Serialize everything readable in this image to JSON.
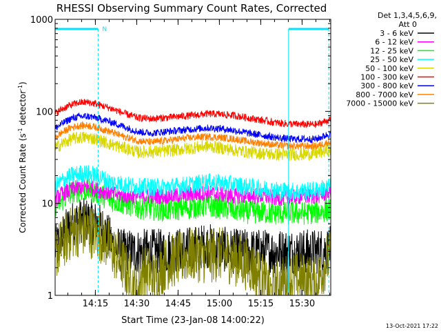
{
  "chart_data": {
    "type": "line",
    "title": "RHESSI Observing Summary Count Rates, Corrected",
    "xlabel": "Start Time (23-Jan-08 14:00:22)",
    "ylabel_main": "Corrected Count Rate (s",
    "ylabel_sup1": "-1",
    "ylabel_mid": " detector",
    "ylabel_sup2": "-1",
    "ylabel_end": ")",
    "yscale": "log",
    "ylim": [
      1,
      1000
    ],
    "xlim_minutes": [
      0,
      100
    ],
    "x_ticks": [
      {
        "t": 14.6,
        "label": "14:15"
      },
      {
        "t": 29.6,
        "label": "14:30"
      },
      {
        "t": 44.6,
        "label": "14:45"
      },
      {
        "t": 59.6,
        "label": "15:00"
      },
      {
        "t": 74.6,
        "label": "15:15"
      },
      {
        "t": 89.6,
        "label": "15:30"
      }
    ],
    "y_ticks": [
      {
        "v": 1,
        "label": "1"
      },
      {
        "v": 10,
        "label": "10"
      },
      {
        "v": 100,
        "label": "100"
      },
      {
        "v": 1000,
        "label": "1000"
      }
    ],
    "legend_header": [
      "Det 1,3,4,5,6,9,",
      "Att 0"
    ],
    "legend_position": "right",
    "series": [
      {
        "name": "3 - 6 keV",
        "color": "#000000",
        "x": [
          0,
          3,
          6,
          9,
          12,
          15,
          18,
          21,
          24,
          30,
          40,
          50,
          55,
          60,
          65,
          70,
          75,
          80,
          85,
          90,
          95,
          99
        ],
        "y": [
          3.2,
          4.5,
          6.0,
          6.5,
          6.5,
          6.0,
          5.0,
          3.5,
          3.0,
          3.0,
          3.0,
          3.2,
          3.5,
          3.2,
          3.0,
          3.0,
          3.0,
          3.0,
          3.0,
          3.0,
          3.0,
          3.2
        ]
      },
      {
        "name": "6 - 12 keV",
        "color": "#ff00ff",
        "x": [
          0,
          3,
          6,
          9,
          12,
          15,
          20,
          25,
          30,
          40,
          50,
          55,
          60,
          65,
          70,
          75,
          80,
          85,
          90,
          95,
          99
        ],
        "y": [
          11,
          13,
          14,
          15,
          15,
          14,
          13,
          12,
          12,
          12,
          12.5,
          13,
          12.5,
          12,
          12,
          12,
          11.5,
          11.5,
          12,
          12,
          13
        ]
      },
      {
        "name": "12 - 25 keV",
        "color": "#00ff00",
        "x": [
          0,
          3,
          6,
          9,
          12,
          15,
          20,
          25,
          30,
          40,
          50,
          55,
          60,
          65,
          70,
          75,
          80,
          85,
          90,
          95,
          99
        ],
        "y": [
          9.5,
          11,
          13,
          14,
          14,
          13,
          11,
          10,
          9,
          8.5,
          9,
          9.5,
          9,
          8.5,
          8,
          8,
          7.8,
          7.8,
          7.8,
          8,
          8.5
        ]
      },
      {
        "name": "25 - 50 keV",
        "color": "#00ffff",
        "x": [
          0,
          3,
          6,
          9,
          12,
          15,
          20,
          25,
          30,
          40,
          50,
          55,
          60,
          65,
          70,
          75,
          80,
          85,
          90,
          95,
          99
        ],
        "y": [
          15,
          18,
          20,
          21,
          21,
          20,
          17,
          16,
          15,
          15,
          16,
          17,
          16.5,
          16,
          15,
          14.5,
          14,
          13.5,
          13.5,
          14,
          15
        ]
      },
      {
        "name": "50 - 100 keV",
        "color": "#d8d800",
        "x": [
          0,
          3,
          6,
          9,
          12,
          15,
          20,
          25,
          30,
          40,
          50,
          55,
          60,
          65,
          70,
          75,
          80,
          85,
          90,
          95,
          99
        ],
        "y": [
          40,
          45,
          50,
          52,
          52,
          50,
          44,
          40,
          36,
          37,
          40,
          42,
          40,
          38,
          36,
          35,
          34,
          34,
          34,
          35,
          38
        ]
      },
      {
        "name": "100 - 300 keV",
        "color": "#ff0000",
        "x": [
          0,
          3,
          6,
          9,
          12,
          15,
          20,
          25,
          30,
          35,
          40,
          45,
          50,
          55,
          60,
          65,
          70,
          75,
          80,
          85,
          90,
          95,
          99
        ],
        "y": [
          95,
          108,
          118,
          125,
          125,
          120,
          108,
          95,
          85,
          83,
          85,
          88,
          90,
          94,
          93,
          90,
          85,
          80,
          75,
          73,
          72,
          72,
          80
        ]
      },
      {
        "name": "300 - 800 keV",
        "color": "#0000ff",
        "x": [
          0,
          3,
          6,
          9,
          12,
          15,
          20,
          25,
          30,
          35,
          40,
          45,
          50,
          55,
          60,
          65,
          70,
          75,
          80,
          85,
          90,
          95,
          99
        ],
        "y": [
          65,
          75,
          84,
          88,
          88,
          85,
          77,
          68,
          60,
          58,
          60,
          62,
          64,
          66,
          65,
          62,
          58,
          55,
          52,
          50,
          50,
          50,
          56
        ]
      },
      {
        "name": "800 - 7000 keV",
        "color": "#ff8000",
        "x": [
          0,
          3,
          6,
          9,
          12,
          15,
          20,
          25,
          30,
          35,
          40,
          45,
          50,
          55,
          60,
          65,
          70,
          75,
          80,
          85,
          90,
          95,
          99
        ],
        "y": [
          52,
          60,
          67,
          70,
          70,
          67,
          60,
          53,
          48,
          46,
          48,
          50,
          52,
          53,
          52,
          50,
          47,
          45,
          43,
          42,
          42,
          42,
          46
        ]
      },
      {
        "name": "7000 - 15000 keV",
        "color": "#808000",
        "x": [
          0,
          3,
          6,
          9,
          12,
          15,
          18,
          21,
          24,
          27,
          30,
          32,
          36,
          40,
          45,
          50,
          55,
          60,
          65,
          70,
          75,
          78,
          80,
          85,
          90,
          95,
          99
        ],
        "y": [
          2.8,
          3.8,
          4.8,
          5.2,
          5.0,
          4.8,
          4.0,
          3.0,
          2.3,
          1.5,
          1.0,
          2.0,
          1.5,
          2.2,
          2.5,
          2.8,
          2.6,
          2.8,
          2.5,
          2.2,
          1.5,
          1.0,
          1.2,
          1.5,
          1.5,
          1.3,
          2.5
        ]
      }
    ],
    "attenuator_marks": [
      {
        "start": 0,
        "end": 15.6,
        "label": "N"
      },
      {
        "start": 84.7,
        "end": 99.3,
        "label": ""
      }
    ]
  },
  "footer": {
    "timestamp": "13-Oct-2021 17:22"
  }
}
